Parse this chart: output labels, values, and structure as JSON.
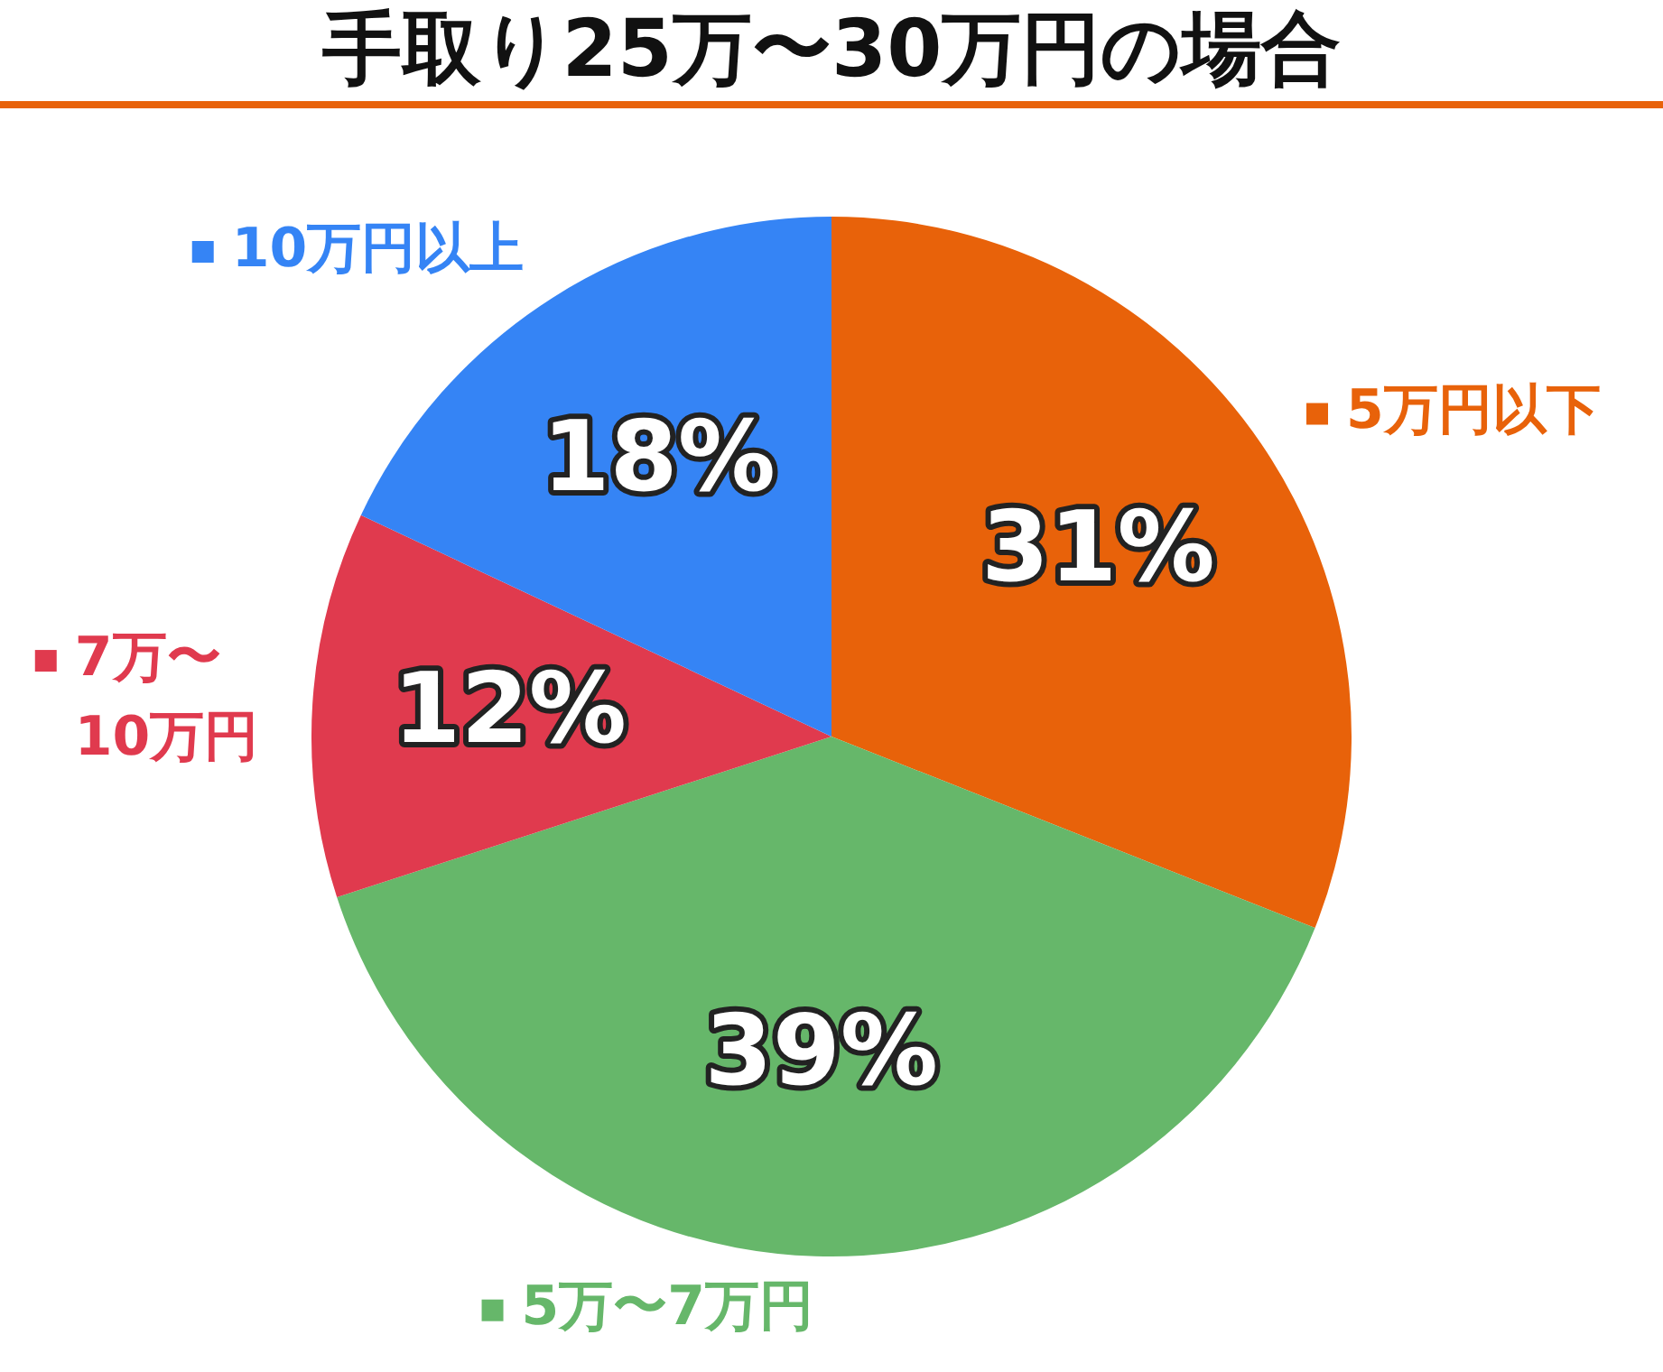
{
  "chart_data": {
    "type": "pie",
    "title": "手取り25万〜30万円の場合",
    "categories": [
      "5万円以下",
      "5万〜7万円",
      "7万〜10万円",
      "10万円以上"
    ],
    "values": [
      31,
      39,
      12,
      18
    ],
    "colors": [
      "#e8620a",
      "#66b76a",
      "#e03a4e",
      "#3584f5"
    ],
    "value_labels": [
      "31%",
      "39%",
      "12%",
      "18%"
    ],
    "legend": "left"
  }
}
